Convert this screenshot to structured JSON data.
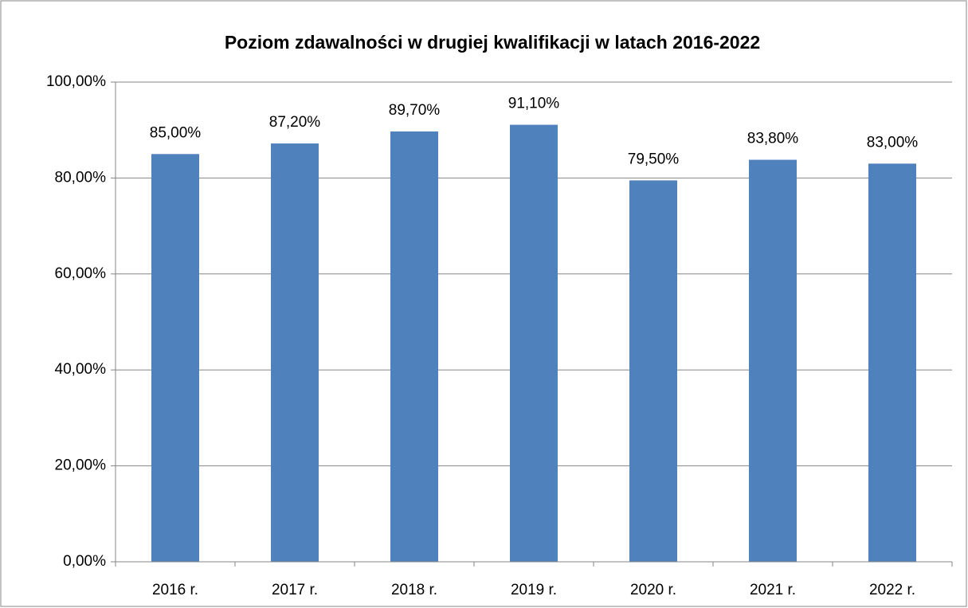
{
  "chart_data": {
    "type": "bar",
    "title": "Poziom zdawalności w drugiej kwalifikacji w latach 2016-2022",
    "categories": [
      "2016 r.",
      "2017 r.",
      "2018 r.",
      "2019 r.",
      "2020 r.",
      "2021 r.",
      "2022 r."
    ],
    "values": [
      85,
      87.2,
      89.7,
      91.1,
      79.5,
      83.8,
      83
    ],
    "value_labels": [
      "85,00%",
      "87,20%",
      "89,70%",
      "91,10%",
      "79,50%",
      "83,80%",
      "83,00%"
    ],
    "color": "#4f81bd",
    "ylim": [
      0,
      100
    ],
    "yticks": [
      {
        "value": 0,
        "label": "0,00%"
      },
      {
        "value": 20,
        "label": "20,00%"
      },
      {
        "value": 40,
        "label": "40,00%"
      },
      {
        "value": 60,
        "label": "60,00%"
      },
      {
        "value": 80,
        "label": "80,00%"
      },
      {
        "value": 100,
        "label": "100,00%"
      }
    ],
    "grid": true
  }
}
